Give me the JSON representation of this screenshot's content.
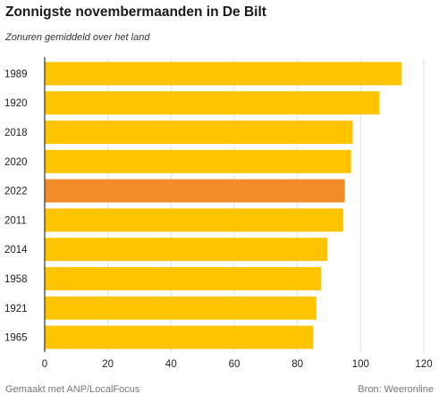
{
  "header": {
    "title": "Zonnigste novembermaanden in De Bilt",
    "subtitle": "Zonuren gemiddeld over het land"
  },
  "footer": {
    "credit": "Gemaakt met ANP/LocalFocus",
    "source": "Bron: Weeronline"
  },
  "chart_data": {
    "type": "bar",
    "orientation": "horizontal",
    "categories": [
      "1989",
      "1920",
      "2018",
      "2020",
      "2022",
      "2011",
      "2014",
      "1958",
      "1921",
      "1965"
    ],
    "values": [
      113,
      106,
      97.5,
      97,
      95,
      94.5,
      89.5,
      87.5,
      86,
      85
    ],
    "highlight_category": "2022",
    "xlim": [
      0,
      120
    ],
    "xticks": [
      0,
      20,
      40,
      60,
      80,
      100,
      120
    ],
    "grid": true,
    "colors": {
      "bar": "#ffc400",
      "highlight": "#f28c28",
      "grid": "#e2e2e2",
      "axis": "#333333"
    }
  }
}
